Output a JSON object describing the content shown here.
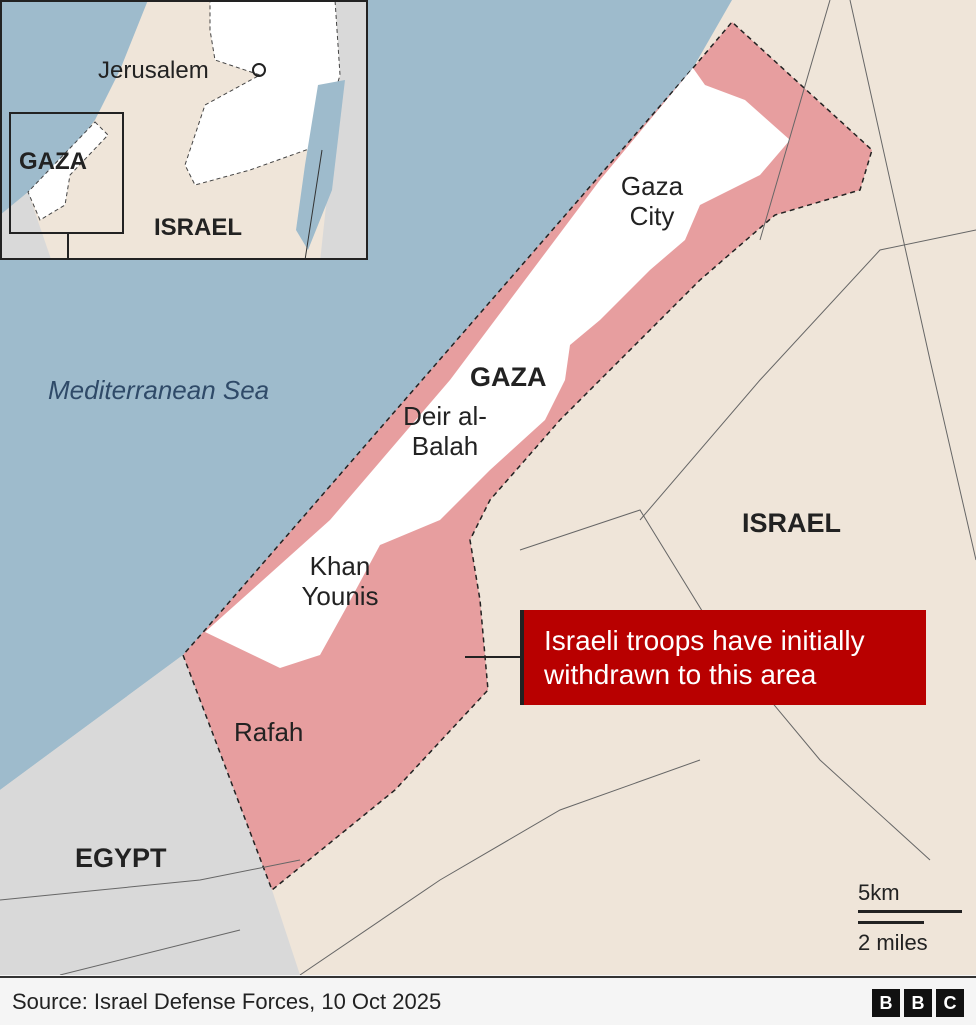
{
  "map": {
    "labels": {
      "sea": "Mediterranean Sea",
      "gaza": "GAZA",
      "gaza_city": "Gaza City",
      "deir_al_balah": "Deir al-Balah",
      "khan_younis": "Khan Younis",
      "rafah": "Rafah",
      "israel": "ISRAEL",
      "egypt": "EGYPT"
    },
    "callout": "Israeli troops have initially withdrawn to this area",
    "scale": {
      "km": "5km",
      "miles": "2 miles"
    },
    "colors": {
      "sea": "#9ebbcc",
      "land": "#efe5d9",
      "egypt": "#d9d9d9",
      "gaza": "#ffffff",
      "withdrawal_zone": "#e79e9f",
      "callout_bg": "#b80000"
    }
  },
  "inset": {
    "jerusalem": "Jerusalem",
    "gaza": "GAZA",
    "israel": "ISRAEL"
  },
  "footer": {
    "source": "Source: Israel Defense Forces, 10 Oct 2025",
    "logo": [
      "B",
      "B",
      "C"
    ]
  }
}
